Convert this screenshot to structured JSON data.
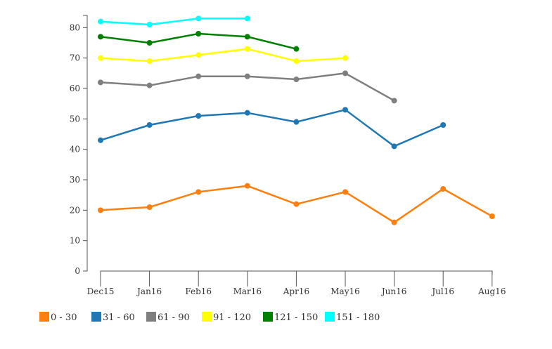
{
  "chart_data": {
    "type": "line",
    "title": "",
    "xlabel": "",
    "ylabel": "",
    "categories": [
      "Dec15",
      "Jan16",
      "Feb16",
      "Mar16",
      "Apr16",
      "May16",
      "Jun16",
      "Jul16",
      "Aug16"
    ],
    "ylim": [
      0,
      83
    ],
    "yticks": [
      0,
      10,
      20,
      30,
      40,
      50,
      60,
      70,
      80
    ],
    "grid": false,
    "legend_position": "bottom-left",
    "series": [
      {
        "name": "0 - 30",
        "color": "#ff7f0e",
        "values": [
          20,
          21,
          26,
          28,
          22,
          26,
          16,
          27,
          18
        ]
      },
      {
        "name": "31 - 60",
        "color": "#1f77b4",
        "values": [
          43,
          48,
          51,
          52,
          49,
          53,
          41,
          48,
          null
        ]
      },
      {
        "name": "61 - 90",
        "color": "#7f7f7f",
        "values": [
          62,
          61,
          64,
          64,
          63,
          65,
          56,
          null,
          null
        ]
      },
      {
        "name": "91 - 120",
        "color": "#ffff00",
        "values": [
          70,
          69,
          71,
          73,
          69,
          70,
          null,
          null,
          null
        ]
      },
      {
        "name": "121 - 150",
        "color": "#008000",
        "values": [
          77,
          75,
          78,
          77,
          73,
          null,
          null,
          null,
          null
        ]
      },
      {
        "name": "151 - 180",
        "color": "#00ffff",
        "values": [
          82,
          81,
          83,
          83,
          null,
          null,
          null,
          null,
          null
        ]
      }
    ]
  }
}
